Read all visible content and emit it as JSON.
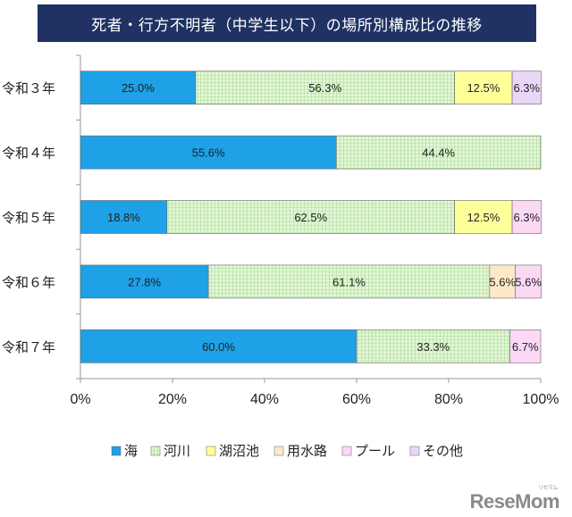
{
  "chart_data": {
    "type": "bar",
    "orientation": "horizontal",
    "stacked": true,
    "title": "死者・行方不明者（中学生以下）の場所別構成比の推移",
    "categories": [
      "令和３年",
      "令和４年",
      "令和５年",
      "令和６年",
      "令和７年"
    ],
    "series": [
      {
        "name": "海",
        "color": "#1ea1e6",
        "pattern": "solid",
        "values": [
          25.0,
          55.6,
          18.8,
          27.8,
          60.0
        ],
        "labels": [
          "25.0%",
          "55.6%",
          "18.8%",
          "27.8%",
          "60.0%"
        ]
      },
      {
        "name": "河川",
        "color": "#d9f2cc",
        "pattern": "grid",
        "values": [
          56.3,
          44.4,
          62.5,
          61.1,
          33.3
        ],
        "labels": [
          "56.3%",
          "44.4%",
          "62.5%",
          "61.1%",
          "33.3%"
        ]
      },
      {
        "name": "湖沼池",
        "color": "#ffff99",
        "pattern": "solid",
        "values": [
          12.5,
          0,
          12.5,
          0,
          0
        ],
        "labels": [
          "12.5%",
          "",
          "12.5%",
          "",
          ""
        ]
      },
      {
        "name": "用水路",
        "color": "#fde9c8",
        "pattern": "solid",
        "values": [
          0,
          0,
          0,
          5.6,
          0
        ],
        "labels": [
          "",
          "",
          "",
          "5.6%",
          ""
        ]
      },
      {
        "name": "プール",
        "color": "#fbd8f6",
        "pattern": "solid",
        "values": [
          0,
          0,
          6.3,
          5.6,
          6.7
        ],
        "labels": [
          "",
          "",
          "6.3%",
          "5.6%",
          "6.7%"
        ]
      },
      {
        "name": "その他",
        "color": "#ead6f7",
        "pattern": "solid",
        "values": [
          6.3,
          0,
          0,
          0,
          0
        ],
        "labels": [
          "6.3%",
          "",
          "",
          "",
          ""
        ]
      }
    ],
    "x_ticks": [
      "0%",
      "20%",
      "40%",
      "60%",
      "80%",
      "100%"
    ],
    "xlim": [
      0,
      100
    ],
    "grid": false,
    "legend_position": "bottom"
  },
  "watermark": {
    "text": "ReseMom",
    "small": "リセマム"
  }
}
